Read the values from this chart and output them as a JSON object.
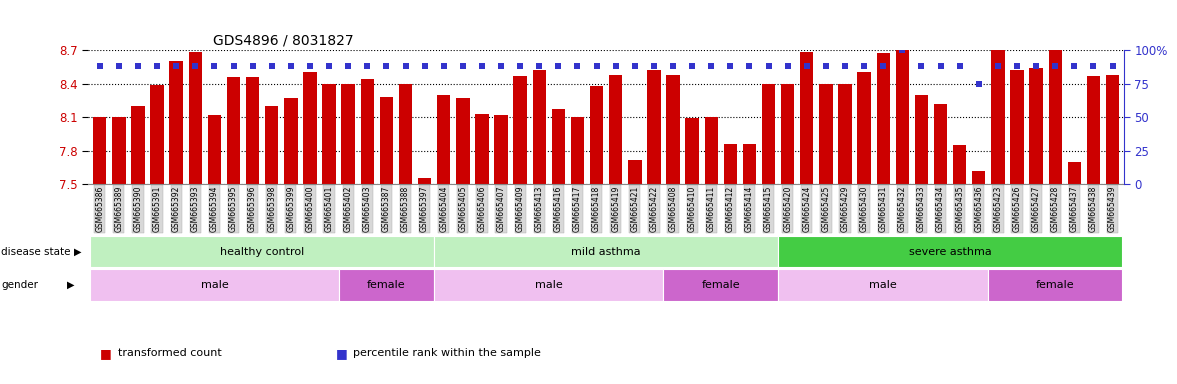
{
  "title": "GDS4896 / 8031827",
  "samples": [
    "GSM665386",
    "GSM665389",
    "GSM665390",
    "GSM665391",
    "GSM665392",
    "GSM665393",
    "GSM665394",
    "GSM665395",
    "GSM665396",
    "GSM665398",
    "GSM665399",
    "GSM665400",
    "GSM665401",
    "GSM665402",
    "GSM665403",
    "GSM665387",
    "GSM665388",
    "GSM665397",
    "GSM665404",
    "GSM665405",
    "GSM665406",
    "GSM665407",
    "GSM665409",
    "GSM665413",
    "GSM665416",
    "GSM665417",
    "GSM665418",
    "GSM665419",
    "GSM665421",
    "GSM665422",
    "GSM665408",
    "GSM665410",
    "GSM665411",
    "GSM665412",
    "GSM665414",
    "GSM665415",
    "GSM665420",
    "GSM665424",
    "GSM665425",
    "GSM665429",
    "GSM665430",
    "GSM665431",
    "GSM665432",
    "GSM665433",
    "GSM665434",
    "GSM665435",
    "GSM665436",
    "GSM665423",
    "GSM665426",
    "GSM665427",
    "GSM665428",
    "GSM665437",
    "GSM665438",
    "GSM665439"
  ],
  "bar_values": [
    8.1,
    8.1,
    8.2,
    8.39,
    8.6,
    8.68,
    8.12,
    8.46,
    8.46,
    8.2,
    8.27,
    8.5,
    8.4,
    8.4,
    8.44,
    8.28,
    8.4,
    7.56,
    8.3,
    8.27,
    8.13,
    8.12,
    8.47,
    8.52,
    8.17,
    8.1,
    8.38,
    8.48,
    7.72,
    8.52,
    8.48,
    8.09,
    8.1,
    7.86,
    7.86,
    8.4,
    8.4,
    8.68,
    8.4,
    8.4,
    8.5,
    8.67,
    9.0,
    8.3,
    8.22,
    7.85,
    7.62,
    8.72,
    8.52,
    8.54,
    8.82,
    7.7,
    8.47,
    8.48
  ],
  "percentile_values": [
    88,
    88,
    88,
    88,
    88,
    88,
    88,
    88,
    88,
    88,
    88,
    88,
    88,
    88,
    88,
    88,
    88,
    88,
    88,
    88,
    88,
    88,
    88,
    88,
    88,
    88,
    88,
    88,
    88,
    88,
    88,
    88,
    88,
    88,
    88,
    88,
    88,
    88,
    88,
    88,
    88,
    88,
    100,
    88,
    88,
    88,
    75,
    88,
    88,
    88,
    88,
    88,
    88,
    88
  ],
  "ylim": [
    7.5,
    8.7
  ],
  "yticks": [
    7.5,
    7.8,
    8.1,
    8.4,
    8.7
  ],
  "bar_color": "#cc0000",
  "dot_color": "#3333cc",
  "bg_color": "#ffffff",
  "disease_segments": [
    {
      "label": "healthy control",
      "start": 0,
      "end": 17,
      "color": "#c0f0c0"
    },
    {
      "label": "mild asthma",
      "start": 18,
      "end": 35,
      "color": "#c0f0c0"
    },
    {
      "label": "severe asthma",
      "start": 36,
      "end": 53,
      "color": "#44cc44"
    }
  ],
  "gender_segments": [
    {
      "label": "male",
      "start": 0,
      "end": 12,
      "color": "#f0c0f0"
    },
    {
      "label": "female",
      "start": 13,
      "end": 17,
      "color": "#cc66cc"
    },
    {
      "label": "male",
      "start": 18,
      "end": 29,
      "color": "#f0c0f0"
    },
    {
      "label": "female",
      "start": 30,
      "end": 35,
      "color": "#cc66cc"
    },
    {
      "label": "male",
      "start": 36,
      "end": 46,
      "color": "#f0c0f0"
    },
    {
      "label": "female",
      "start": 47,
      "end": 53,
      "color": "#cc66cc"
    }
  ],
  "right_yticks": [
    0,
    25,
    50,
    75,
    100
  ],
  "right_yticklabels": [
    "0",
    "25",
    "50",
    "75",
    "100%"
  ],
  "legend_items": [
    {
      "label": "transformed count",
      "color": "#cc0000",
      "marker": "s"
    },
    {
      "label": "percentile rank within the sample",
      "color": "#3333cc",
      "marker": "s"
    }
  ]
}
